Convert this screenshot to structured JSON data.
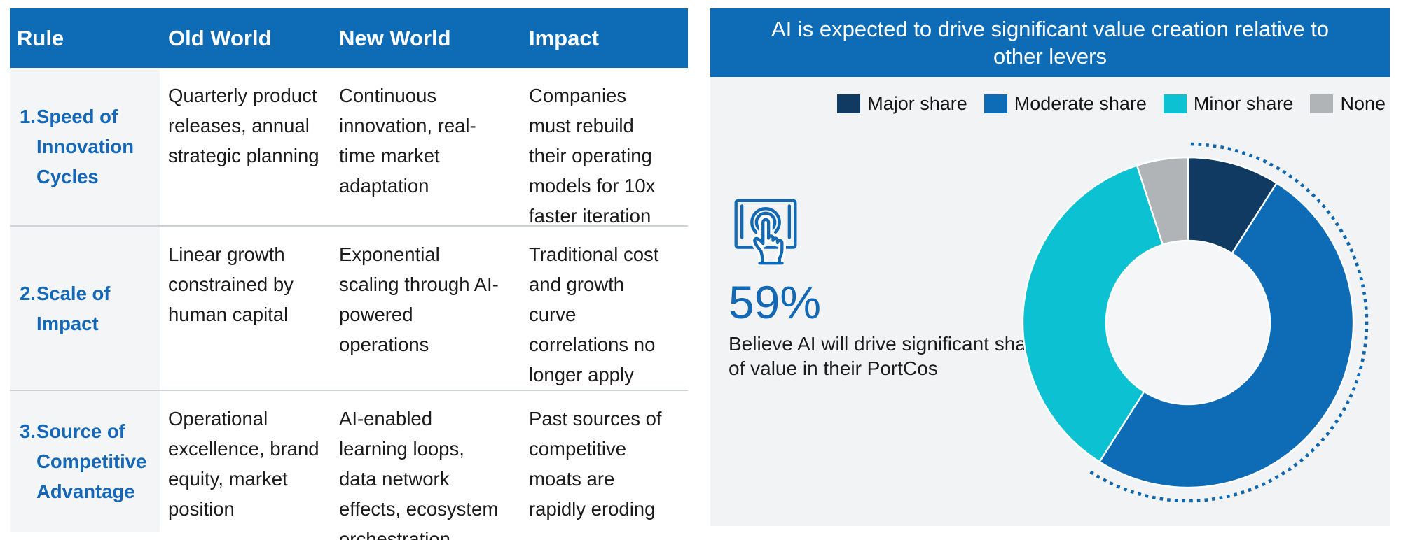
{
  "table": {
    "headers": [
      "Rule",
      "Old World",
      "New World",
      "Impact"
    ],
    "rows": [
      {
        "number": "1.",
        "rule": "Speed of Innovation Cycles",
        "old_world": "Quarterly product releases, annual strategic planning",
        "new_world": "Continuous innovation, real-time market adaptation",
        "impact": "Companies must rebuild their operating models for 10x faster iteration"
      },
      {
        "number": "2.",
        "rule": "Scale of Impact",
        "old_world": "Linear growth constrained by human capital",
        "new_world": "Exponential scaling through AI-powered operations",
        "impact": "Traditional cost and growth curve correlations no longer apply"
      },
      {
        "number": "3.",
        "rule": "Source of Competitive Advantage",
        "old_world": "Operational excellence, brand equity, market position",
        "new_world": "AI-enabled learning loops, data network effects, ecosystem orchestration",
        "impact": "Past sources of competitive moats are rapidly eroding"
      }
    ]
  },
  "right_panel": {
    "title": "AI is expected to drive significant value creation relative to other levers",
    "stat_value": "59%",
    "stat_caption": "Believe AI will drive significant share of value in their PortCos",
    "icon": "touch-screen-icon"
  },
  "chart_data": {
    "type": "donut",
    "title": "AI is expected to drive significant value creation relative to other levers",
    "values_unit": "percent",
    "segments": [
      {
        "label": "Major share",
        "value": 9,
        "color": "#103A62"
      },
      {
        "label": "Moderate share",
        "value": 50,
        "color": "#0E6CB6"
      },
      {
        "label": "Minor share",
        "value": 36,
        "color": "#0BC1D2"
      },
      {
        "label": "None",
        "value": 5,
        "color": "#B1B4B6"
      }
    ],
    "highlight_arc": {
      "percent": 59,
      "color": "#0F65AE",
      "style": "dotted",
      "meaning": "Major share + Moderate share"
    },
    "legend_position": "top-right",
    "hole_ratio": 0.5,
    "start_angle_deg": 0,
    "direction": "clockwise"
  },
  "colors": {
    "primary_blue": "#0E6CB6",
    "rule_text_blue": "#1568B8",
    "body_text": "#1B1B1B",
    "panel_bg": "#F1F3F5",
    "col1_bg": "#F4F5F7",
    "separator": "#CDD1D5",
    "header_text": "#FFFFFF",
    "donut_hole": "#F5F6F8"
  }
}
